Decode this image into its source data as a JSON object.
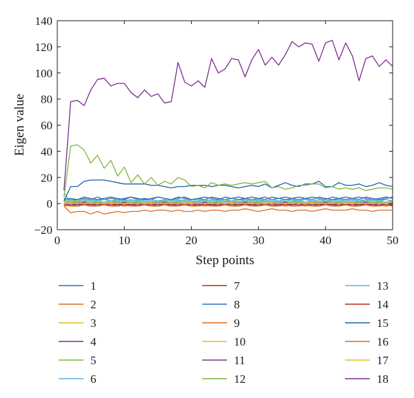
{
  "chart_data": {
    "type": "line",
    "title": "",
    "xlabel": "Step points",
    "ylabel": "Eigen value",
    "xlim": [
      0,
      50
    ],
    "ylim": [
      -20,
      140
    ],
    "xticks": [
      "0",
      "10",
      "20",
      "30",
      "40",
      "50"
    ],
    "yticks": [
      "−20",
      "0",
      "20",
      "40",
      "60",
      "80",
      "100",
      "120",
      "140"
    ],
    "grid": false,
    "legend_position": "bottom, 3 columns",
    "x": [
      1,
      2,
      3,
      4,
      5,
      6,
      7,
      8,
      9,
      10,
      11,
      12,
      13,
      14,
      15,
      16,
      17,
      18,
      19,
      20,
      21,
      22,
      23,
      24,
      25,
      26,
      27,
      28,
      29,
      30,
      31,
      32,
      33,
      34,
      35,
      36,
      37,
      38,
      39,
      40,
      41,
      42,
      43,
      44,
      45,
      46,
      47,
      48,
      49,
      50
    ],
    "series": [
      {
        "name": "1",
        "color": "#2e6fbf",
        "values": [
          4,
          3,
          3,
          4,
          3,
          5,
          3,
          4,
          3,
          4,
          5,
          3,
          4,
          3,
          5,
          4,
          3,
          4,
          5,
          3,
          4,
          3,
          5,
          4,
          3,
          4,
          5,
          4,
          3,
          4,
          5,
          3,
          4,
          5,
          4,
          3,
          4,
          5,
          4,
          3,
          5,
          4,
          3,
          4,
          5,
          4,
          3,
          4,
          5,
          4
        ]
      },
      {
        "name": "2",
        "color": "#e06a1c",
        "values": [
          -2,
          -1,
          -2,
          -1,
          -2,
          -1,
          -1,
          -2,
          -1,
          -2,
          -1,
          -2,
          -1,
          -1,
          -2,
          -1,
          -2,
          -1,
          -1,
          -2,
          -1,
          -2,
          -1,
          -2,
          -1,
          -1,
          -2,
          -1,
          -2,
          -1,
          -1,
          -2,
          -1,
          -2,
          -1,
          -1,
          -2,
          -1,
          -2,
          -1,
          -1,
          -2,
          -1,
          -2,
          -1,
          -1,
          -2,
          -1,
          -2,
          -1
        ]
      },
      {
        "name": "3",
        "color": "#e8b820",
        "values": [
          1,
          1,
          2,
          1,
          1,
          2,
          1,
          1,
          2,
          1,
          1,
          2,
          1,
          1,
          2,
          1,
          1,
          2,
          1,
          1,
          2,
          1,
          1,
          2,
          1,
          1,
          2,
          1,
          1,
          2,
          1,
          1,
          2,
          1,
          1,
          2,
          1,
          1,
          2,
          1,
          1,
          2,
          1,
          1,
          2,
          1,
          1,
          2,
          1,
          1
        ]
      },
      {
        "name": "4",
        "color": "#7b2a91",
        "values": [
          0,
          1,
          0,
          1,
          0,
          1,
          0,
          1,
          0,
          1,
          0,
          1,
          0,
          1,
          0,
          1,
          0,
          1,
          0,
          1,
          0,
          1,
          0,
          1,
          0,
          1,
          0,
          1,
          0,
          1,
          0,
          1,
          0,
          1,
          0,
          1,
          0,
          1,
          0,
          1,
          0,
          1,
          0,
          1,
          0,
          1,
          0,
          1,
          0,
          1
        ]
      },
      {
        "name": "5",
        "color": "#7fb33a",
        "values": [
          2,
          3,
          2,
          3,
          2,
          3,
          3,
          2,
          3,
          2,
          3,
          2,
          3,
          3,
          2,
          3,
          2,
          3,
          2,
          3,
          3,
          2,
          3,
          2,
          3,
          2,
          3,
          3,
          2,
          3,
          2,
          3,
          2,
          3,
          3,
          2,
          3,
          2,
          3,
          2,
          3,
          3,
          2,
          3,
          2,
          3,
          2,
          3,
          3,
          2
        ]
      },
      {
        "name": "6",
        "color": "#5ab3e0",
        "values": [
          8,
          2,
          1,
          2,
          3,
          2,
          3,
          2,
          2,
          3,
          2,
          3,
          2,
          3,
          2,
          2,
          3,
          2,
          3,
          2,
          2,
          3,
          2,
          3,
          2,
          2,
          3,
          2,
          3,
          2,
          2,
          3,
          2,
          3,
          2,
          2,
          3,
          2,
          3,
          2,
          2,
          3,
          2,
          3,
          2,
          2,
          3,
          2,
          3,
          2
        ]
      },
      {
        "name": "7",
        "color": "#b52a1c",
        "values": [
          -1,
          0,
          -1,
          0,
          -1,
          0,
          -1,
          0,
          -1,
          0,
          -1,
          0,
          -1,
          0,
          -1,
          0,
          -1,
          0,
          -1,
          0,
          -1,
          0,
          -1,
          0,
          -1,
          0,
          -1,
          0,
          -1,
          0,
          -1,
          0,
          -1,
          0,
          -1,
          0,
          -1,
          0,
          -1,
          0,
          -1,
          0,
          -1,
          0,
          -1,
          0,
          -1,
          0,
          -1,
          0
        ]
      },
      {
        "name": "8",
        "color": "#2e6fbf",
        "values": [
          3,
          4,
          3,
          5,
          4,
          3,
          4,
          5,
          4,
          3,
          5,
          4,
          3,
          4,
          5,
          4,
          3,
          5,
          4,
          3,
          4,
          5,
          4,
          3,
          5,
          4,
          3,
          4,
          5,
          4,
          3,
          5,
          4,
          3,
          4,
          5,
          4,
          3,
          5,
          4,
          3,
          4,
          5,
          4,
          3,
          5,
          4,
          3,
          4,
          5
        ]
      },
      {
        "name": "9",
        "color": "#e06a1c",
        "values": [
          -2,
          -7,
          -6,
          -6,
          -8,
          -6,
          -8,
          -7,
          -6,
          -7,
          -6,
          -6,
          -5,
          -6,
          -5,
          -5,
          -6,
          -5,
          -6,
          -6,
          -5,
          -6,
          -5,
          -5,
          -6,
          -5,
          -5,
          -4,
          -5,
          -6,
          -5,
          -4,
          -5,
          -5,
          -6,
          -5,
          -5,
          -6,
          -5,
          -4,
          -5,
          -5,
          -5,
          -4,
          -5,
          -5,
          -6,
          -5,
          -5,
          -5
        ]
      },
      {
        "name": "10",
        "color": "#e8b820",
        "values": [
          0,
          1,
          1,
          0,
          1,
          1,
          0,
          1,
          1,
          0,
          1,
          1,
          0,
          1,
          1,
          0,
          1,
          1,
          0,
          1,
          1,
          0,
          1,
          1,
          0,
          1,
          1,
          0,
          1,
          1,
          0,
          1,
          1,
          0,
          1,
          1,
          0,
          1,
          1,
          0,
          1,
          1,
          0,
          1,
          1,
          0,
          1,
          1,
          0,
          1
        ]
      },
      {
        "name": "11",
        "color": "#7b2a91",
        "values": [
          -1,
          -1,
          -1,
          -1,
          -1,
          -1,
          -1,
          -1,
          -1,
          -1,
          -1,
          -1,
          -1,
          -1,
          -1,
          -1,
          -1,
          -1,
          -1,
          -1,
          -1,
          -1,
          -1,
          -1,
          -1,
          -1,
          -1,
          -1,
          -1,
          -1,
          -1,
          -1,
          -1,
          -1,
          -1,
          -1,
          -1,
          -1,
          -1,
          -1,
          -1,
          -1,
          -1,
          -1,
          -1,
          -1,
          -1,
          -1,
          -1,
          -1
        ]
      },
      {
        "name": "12",
        "color": "#7fb33a",
        "values": [
          0,
          0,
          1,
          0,
          0,
          1,
          0,
          0,
          1,
          0,
          0,
          1,
          0,
          0,
          1,
          0,
          0,
          1,
          0,
          0,
          1,
          0,
          0,
          1,
          0,
          0,
          1,
          0,
          0,
          1,
          0,
          0,
          1,
          0,
          0,
          1,
          0,
          0,
          1,
          0,
          0,
          1,
          0,
          0,
          1,
          0,
          0,
          1,
          0,
          0
        ]
      },
      {
        "name": "13",
        "color": "#5ab3e0",
        "values": [
          1,
          2,
          1,
          2,
          1,
          2,
          1,
          2,
          1,
          2,
          1,
          2,
          1,
          2,
          1,
          2,
          1,
          2,
          1,
          2,
          1,
          2,
          1,
          2,
          1,
          2,
          1,
          2,
          1,
          2,
          1,
          2,
          1,
          2,
          1,
          2,
          1,
          2,
          1,
          2,
          1,
          2,
          1,
          2,
          1,
          2,
          1,
          2,
          1,
          2
        ]
      },
      {
        "name": "14",
        "color": "#b52a1c",
        "values": [
          -1,
          0,
          0,
          -1,
          0,
          0,
          -1,
          0,
          0,
          -1,
          0,
          0,
          -1,
          0,
          0,
          -1,
          0,
          0,
          -1,
          0,
          0,
          -1,
          0,
          0,
          -1,
          0,
          0,
          -1,
          0,
          0,
          -1,
          0,
          0,
          -1,
          0,
          0,
          -1,
          0,
          0,
          -1,
          0,
          0,
          -1,
          0,
          0,
          -1,
          0,
          0,
          -1,
          0
        ]
      },
      {
        "name": "15",
        "color": "#1f5fa8",
        "values": [
          2,
          13,
          13,
          17,
          18,
          18,
          18,
          17,
          16,
          15,
          15,
          15,
          15,
          14,
          14,
          13,
          12,
          13,
          13,
          14,
          14,
          14,
          13,
          14,
          14,
          13,
          12,
          13,
          14,
          13,
          15,
          12,
          14,
          16,
          14,
          13,
          15,
          15,
          17,
          13,
          13,
          16,
          14,
          14,
          15,
          13,
          14,
          16,
          14,
          13
        ]
      },
      {
        "name": "16",
        "color": "#e06a1c",
        "values": [
          -1,
          -2,
          -2,
          -1,
          -2,
          -2,
          -1,
          -2,
          -2,
          -1,
          -2,
          -2,
          -1,
          -2,
          -2,
          -1,
          -2,
          -2,
          -1,
          -2,
          -2,
          -1,
          -2,
          -2,
          -1,
          -2,
          -2,
          -1,
          -2,
          -2,
          -1,
          -2,
          -2,
          -1,
          -2,
          -2,
          -1,
          -2,
          -2,
          -1,
          -2,
          -2,
          -1,
          -2,
          -2,
          -1,
          -2,
          -2,
          -1,
          -2
        ]
      },
      {
        "name": "17",
        "color": "#e8b820",
        "values": [
          0,
          0,
          0,
          0,
          0,
          0,
          0,
          0,
          0,
          0,
          0,
          0,
          0,
          0,
          0,
          0,
          0,
          0,
          0,
          0,
          0,
          0,
          0,
          0,
          0,
          0,
          0,
          0,
          0,
          0,
          0,
          0,
          0,
          0,
          0,
          0,
          0,
          0,
          0,
          0,
          0,
          0,
          0,
          0,
          0,
          0,
          0,
          0,
          0,
          0
        ]
      },
      {
        "name": "18",
        "color": "#7b2a91",
        "values": [
          10,
          78,
          79,
          75,
          87,
          95,
          96,
          90,
          92,
          92,
          85,
          81,
          87,
          82,
          84,
          77,
          78,
          108,
          93,
          90,
          94,
          89,
          111,
          100,
          103,
          111,
          110,
          97,
          110,
          118,
          106,
          112,
          106,
          114,
          124,
          120,
          123,
          122,
          109,
          123,
          125,
          110,
          123,
          113,
          94,
          111,
          113,
          105,
          110,
          105
        ]
      },
      {
        "name": "",
        "color": "#7fb33a",
        "values": [
          5,
          44,
          45,
          41,
          31,
          37,
          27,
          33,
          21,
          28,
          16,
          22,
          15,
          20,
          14,
          17,
          15,
          20,
          18,
          13,
          14,
          12,
          16,
          14,
          15,
          14,
          15,
          16,
          15,
          16,
          17,
          12,
          13,
          11,
          12,
          14,
          14,
          15,
          15,
          12,
          13,
          11,
          12,
          11,
          12,
          10,
          11,
          12,
          12,
          11
        ]
      }
    ]
  }
}
